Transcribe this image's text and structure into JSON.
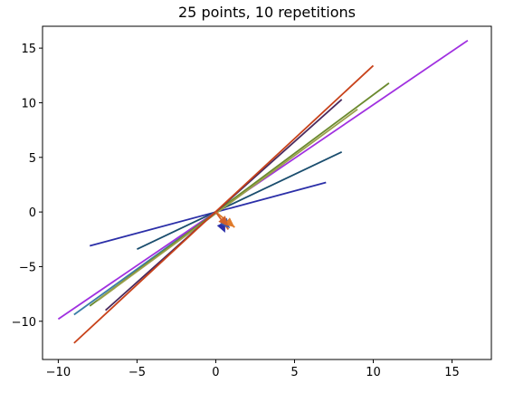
{
  "chart_data": {
    "type": "line",
    "title": "25 points, 10 repetitions",
    "xlabel": "",
    "ylabel": "",
    "xlim": [
      -11,
      17.5
    ],
    "ylim": [
      -13.5,
      17
    ],
    "xticks": [
      -10,
      -5,
      0,
      5,
      10,
      15
    ],
    "yticks": [
      -10,
      -5,
      0,
      5,
      10,
      15
    ],
    "xtick_labels": [
      "−10",
      "−5",
      "0",
      "5",
      "10",
      "15"
    ],
    "ytick_labels": [
      "−10",
      "−5",
      "0",
      "5",
      "10",
      "15"
    ],
    "grid": false,
    "legend": "none",
    "series": [
      {
        "color": "#2b2fa8",
        "x": [
          -8,
          7
        ],
        "y": [
          -3.1,
          2.7
        ]
      },
      {
        "color": "#1a4d6e",
        "x": [
          -5,
          8
        ],
        "y": [
          -3.4,
          5.5
        ]
      },
      {
        "color": "#3a7ca8",
        "x": [
          -9,
          0
        ],
        "y": [
          -9.4,
          0
        ]
      },
      {
        "color": "#a030e0",
        "x": [
          -10,
          16
        ],
        "y": [
          -9.8,
          15.7
        ]
      },
      {
        "color": "#6b8a2e",
        "x": [
          -8,
          11
        ],
        "y": [
          -8.6,
          11.8
        ]
      },
      {
        "color": "#9aa04a",
        "x": [
          -7.5,
          9
        ],
        "y": [
          -8.1,
          9.4
        ]
      },
      {
        "color": "#4a2a5e",
        "x": [
          -7,
          8
        ],
        "y": [
          -9.0,
          10.3
        ]
      },
      {
        "color": "#c8421a",
        "x": [
          -9,
          10
        ],
        "y": [
          -12.0,
          13.4
        ]
      },
      {
        "color": "#e07b2a",
        "x": [
          0,
          1.2
        ],
        "y": [
          0,
          -1.4
        ]
      },
      {
        "color": "#d0602a",
        "x": [
          0,
          0.8
        ],
        "y": [
          0,
          -1.6
        ]
      }
    ],
    "arrowheads": [
      {
        "color": "#2b2fa8",
        "x": 0.6,
        "y": -1.9
      },
      {
        "color": "#3a5cb0",
        "x": 0.9,
        "y": -1.5
      },
      {
        "color": "#e07b2a",
        "x": 1.2,
        "y": -1.4
      },
      {
        "color": "#d0602a",
        "x": 0.8,
        "y": -1.3
      }
    ]
  }
}
